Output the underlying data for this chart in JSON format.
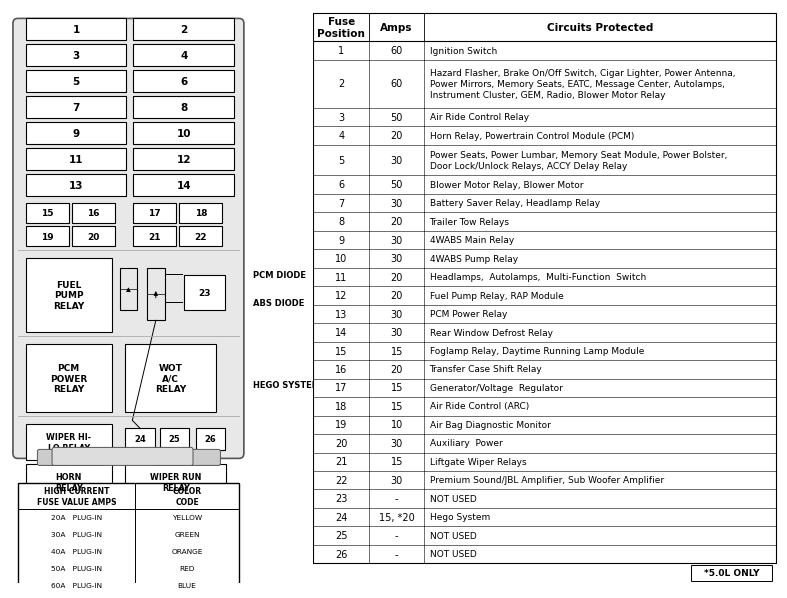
{
  "fuse_data": [
    [
      1,
      60,
      "Ignition Switch"
    ],
    [
      2,
      60,
      "Hazard Flasher, Brake On/Off Switch, Cigar Lighter, Power Antenna,\nPower Mirrors, Memory Seats, EATC, Message Center, Autolamps,\nInstrument Cluster, GEM, Radio, Blower Motor Relay"
    ],
    [
      3,
      50,
      "Air Ride Control Relay"
    ],
    [
      4,
      20,
      "Horn Relay, Powertrain Control Module (PCM)"
    ],
    [
      5,
      30,
      "Power Seats, Power Lumbar, Memory Seat Module, Power Bolster,\nDoor Lock/Unlock Relays, ACCY Delay Relay"
    ],
    [
      6,
      50,
      "Blower Motor Relay, Blower Motor"
    ],
    [
      7,
      30,
      "Battery Saver Relay, Headlamp Relay"
    ],
    [
      8,
      20,
      "Trailer Tow Relays"
    ],
    [
      9,
      30,
      "4WABS Main Relay"
    ],
    [
      10,
      30,
      "4WABS Pump Relay"
    ],
    [
      11,
      20,
      "Headlamps,  Autolamps,  Multi-Function  Switch"
    ],
    [
      12,
      20,
      "Fuel Pump Relay, RAP Module"
    ],
    [
      13,
      30,
      "PCM Power Relay"
    ],
    [
      14,
      30,
      "Rear Window Defrost Relay"
    ],
    [
      15,
      15,
      "Foglamp Relay, Daytime Running Lamp Module"
    ],
    [
      16,
      20,
      "Transfer Case Shift Relay"
    ],
    [
      17,
      15,
      "Generator/Voltage  Regulator"
    ],
    [
      18,
      15,
      "Air Ride Control (ARC)"
    ],
    [
      19,
      10,
      "Air Bag Diagnostic Monitor"
    ],
    [
      20,
      30,
      "Auxiliary  Power"
    ],
    [
      21,
      15,
      "Liftgate Wiper Relays"
    ],
    [
      22,
      30,
      "Premium Sound/JBL Amplifier, Sub Woofer Amplifier"
    ],
    [
      23,
      "-",
      "NOT USED"
    ],
    [
      24,
      "15, *20",
      "Hego System"
    ],
    [
      25,
      "-",
      "NOT USED"
    ],
    [
      26,
      "-",
      "NOT USED"
    ]
  ],
  "color_codes": [
    [
      "20A   PLUG-IN",
      "YELLOW"
    ],
    [
      "30A   PLUG-IN",
      "GREEN"
    ],
    [
      "40A   PLUG-IN",
      "ORANGE"
    ],
    [
      "50A   PLUG-IN",
      "RED"
    ],
    [
      "60A   PLUG-IN",
      "BLUE"
    ]
  ],
  "note": "*5.0L ONLY"
}
